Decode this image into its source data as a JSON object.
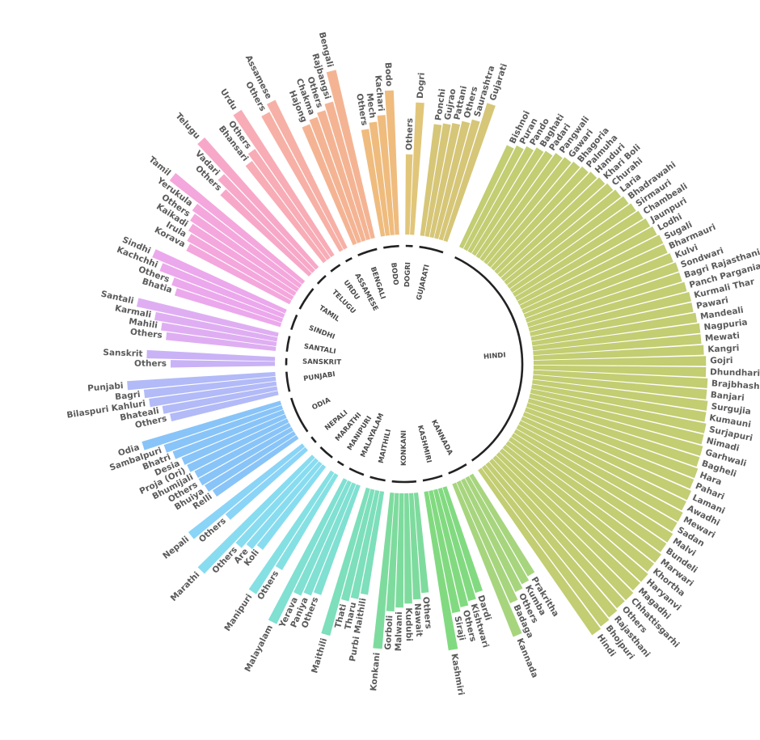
{
  "chart_data": {
    "type": "bar",
    "polar": true,
    "title": "",
    "groups": [
      {
        "name": "HINDI",
        "color": "#c3cd72",
        "bars": [
          {
            "label": "Bishnoi",
            "value": 0.56
          },
          {
            "label": "Puran",
            "value": 0.58
          },
          {
            "label": "Pando",
            "value": 0.6
          },
          {
            "label": "Baghati",
            "value": 0.62
          },
          {
            "label": "Padari",
            "value": 0.63
          },
          {
            "label": "Pangwali",
            "value": 0.65
          },
          {
            "label": "Gawari",
            "value": 0.66
          },
          {
            "label": "Bhagoria",
            "value": 0.67
          },
          {
            "label": "Palmuha",
            "value": 0.68
          },
          {
            "label": "Handuri",
            "value": 0.69
          },
          {
            "label": "Khari Boli",
            "value": 0.7
          },
          {
            "label": "Churahi",
            "value": 0.71
          },
          {
            "label": "Laria",
            "value": 0.72
          },
          {
            "label": "Bhadrawahi",
            "value": 0.73
          },
          {
            "label": "Sirmauri",
            "value": 0.74
          },
          {
            "label": "Chambeali",
            "value": 0.75
          },
          {
            "label": "Jaunpuri",
            "value": 0.76
          },
          {
            "label": "Lodhi",
            "value": 0.77
          },
          {
            "label": "Sugali",
            "value": 0.78
          },
          {
            "label": "Bharmauri",
            "value": 0.78
          },
          {
            "label": "Kulvi",
            "value": 0.79
          },
          {
            "label": "Sondwari",
            "value": 0.8
          },
          {
            "label": "Bagri Rajasthani",
            "value": 0.8
          },
          {
            "label": "Panch Pargania",
            "value": 0.81
          },
          {
            "label": "Kurmali Thar",
            "value": 0.82
          },
          {
            "label": "Pawari",
            "value": 0.82
          },
          {
            "label": "Mandeali",
            "value": 0.83
          },
          {
            "label": "Nagpuria",
            "value": 0.84
          },
          {
            "label": "Mewati",
            "value": 0.84
          },
          {
            "label": "Kangri",
            "value": 0.85
          },
          {
            "label": "Gojri",
            "value": 0.86
          },
          {
            "label": "Dhundhari",
            "value": 0.86
          },
          {
            "label": "Brajbhasha",
            "value": 0.87
          },
          {
            "label": "Banjari",
            "value": 0.87
          },
          {
            "label": "Surgujia",
            "value": 0.88
          },
          {
            "label": "Kumauni",
            "value": 0.88
          },
          {
            "label": "Surjapuri",
            "value": 0.89
          },
          {
            "label": "Nimadi",
            "value": 0.89
          },
          {
            "label": "Garhwali",
            "value": 0.9
          },
          {
            "label": "Bagheli",
            "value": 0.9
          },
          {
            "label": "Hara",
            "value": 0.91
          },
          {
            "label": "Pahari",
            "value": 0.91
          },
          {
            "label": "Lamani",
            "value": 0.92
          },
          {
            "label": "Awadhi",
            "value": 0.92
          },
          {
            "label": "Mewari",
            "value": 0.93
          },
          {
            "label": "Sadan",
            "value": 0.93
          },
          {
            "label": "Malvi",
            "value": 0.94
          },
          {
            "label": "Bundeli",
            "value": 0.94
          },
          {
            "label": "Marwari",
            "value": 0.95
          },
          {
            "label": "Khortha",
            "value": 0.95
          },
          {
            "label": "Haryanvi",
            "value": 0.96
          },
          {
            "label": "Magadhi",
            "value": 0.96
          },
          {
            "label": "Chhattisgarhi",
            "value": 0.97
          },
          {
            "label": "Others",
            "value": 0.97
          },
          {
            "label": "Rajasthani",
            "value": 0.98
          },
          {
            "label": "Bhojpuri",
            "value": 0.99
          },
          {
            "label": "Hindi",
            "value": 1.0
          }
        ]
      },
      {
        "name": "KANNADA",
        "color": "#a7d57e",
        "bars": [
          {
            "label": "Prakritha",
            "value": 0.58
          },
          {
            "label": "Kumba",
            "value": 0.6
          },
          {
            "label": "Others",
            "value": 0.62
          },
          {
            "label": "Badaga",
            "value": 0.66
          },
          {
            "label": "Kannada",
            "value": 0.82
          }
        ]
      },
      {
        "name": "KASHMIRI",
        "color": "#82da80",
        "bars": [
          {
            "label": "Dardi",
            "value": 0.55
          },
          {
            "label": "Kishtwari",
            "value": 0.58
          },
          {
            "label": "Others",
            "value": 0.6
          },
          {
            "label": "Siraji",
            "value": 0.62
          },
          {
            "label": "Kashmiri",
            "value": 0.8
          }
        ]
      },
      {
        "name": "KONKANI",
        "color": "#7edb9e",
        "bars": [
          {
            "label": "Others",
            "value": 0.5
          },
          {
            "label": "Nawait",
            "value": 0.53
          },
          {
            "label": "Kudubi",
            "value": 0.55
          },
          {
            "label": "Malwani",
            "value": 0.57
          },
          {
            "label": "Gorboli",
            "value": 0.59
          },
          {
            "label": "Konkani",
            "value": 0.78
          }
        ]
      },
      {
        "name": "MAITHILI",
        "color": "#7ddfbb",
        "bars": [
          {
            "label": "Purbi Maithili",
            "value": 0.52
          },
          {
            "label": "Tharu",
            "value": 0.55
          },
          {
            "label": "Thati",
            "value": 0.57
          },
          {
            "label": "Maithili",
            "value": 0.76
          }
        ]
      },
      {
        "name": "MALAYALAM",
        "color": "#80e0d2",
        "bars": [
          {
            "label": "Others",
            "value": 0.58
          },
          {
            "label": "Paniya",
            "value": 0.6
          },
          {
            "label": "Yerava",
            "value": 0.62
          },
          {
            "label": "Malayalam",
            "value": 0.8
          }
        ]
      },
      {
        "name": "MANIPURI",
        "color": "#85e0e3",
        "bars": [
          {
            "label": "Others",
            "value": 0.55
          },
          {
            "label": "Manipuri",
            "value": 0.72
          }
        ]
      },
      {
        "name": "MARATHI",
        "color": "#88dcf0",
        "bars": [
          {
            "label": "Koli",
            "value": 0.52
          },
          {
            "label": "Are",
            "value": 0.55
          },
          {
            "label": "Others",
            "value": 0.58
          },
          {
            "label": "Marathi",
            "value": 0.8
          }
        ]
      },
      {
        "name": "NEPALI",
        "color": "#8ad4f7",
        "bars": [
          {
            "label": "Others",
            "value": 0.52
          },
          {
            "label": "Nepali",
            "value": 0.72
          }
        ]
      },
      {
        "name": "ODIA",
        "color": "#88c4f8",
        "bars": [
          {
            "label": "Relli",
            "value": 0.5
          },
          {
            "label": "Bhuiya",
            "value": 0.52
          },
          {
            "label": "Others",
            "value": 0.53
          },
          {
            "label": "Bhumijali",
            "value": 0.53
          },
          {
            "label": "Proja (Ori)",
            "value": 0.55
          },
          {
            "label": "Desia",
            "value": 0.56
          },
          {
            "label": "Bhatri",
            "value": 0.59
          },
          {
            "label": "Sambalpuri",
            "value": 0.62
          },
          {
            "label": "Odia",
            "value": 0.72
          }
        ]
      },
      {
        "name": "PUNJABI",
        "color": "#b2baf7",
        "bars": [
          {
            "label": "Others",
            "value": 0.55
          },
          {
            "label": "Bhateali",
            "value": 0.58
          },
          {
            "label": "Bilaspuri Kahluri",
            "value": 0.64
          },
          {
            "label": "Bagri",
            "value": 0.66
          },
          {
            "label": "Punjabi",
            "value": 0.74
          }
        ]
      },
      {
        "name": "SANSKRIT",
        "color": "#c9b2f6",
        "bars": [
          {
            "label": "Others",
            "value": 0.52
          },
          {
            "label": "Sanskrit",
            "value": 0.64
          }
        ]
      },
      {
        "name": "SANTALI",
        "color": "#dfaef2",
        "bars": [
          {
            "label": "Others",
            "value": 0.55
          },
          {
            "label": "Mahili",
            "value": 0.58
          },
          {
            "label": "Karmali",
            "value": 0.62
          },
          {
            "label": "Santali",
            "value": 0.72
          }
        ]
      },
      {
        "name": "SINDHI",
        "color": "#eca8ec",
        "bars": [
          {
            "label": "Bhatia",
            "value": 0.55
          },
          {
            "label": "Others",
            "value": 0.58
          },
          {
            "label": "Kachchhi",
            "value": 0.66
          },
          {
            "label": "Sindhi",
            "value": 0.72
          }
        ]
      },
      {
        "name": "TAMIL",
        "color": "#f4a7dc",
        "bars": [
          {
            "label": "Korava",
            "value": 0.58
          },
          {
            "label": "Irula",
            "value": 0.6
          },
          {
            "label": "Kaikadi",
            "value": 0.62
          },
          {
            "label": "Others",
            "value": 0.64
          },
          {
            "label": "Yerukula",
            "value": 0.66
          },
          {
            "label": "Tamil",
            "value": 0.84
          }
        ]
      },
      {
        "name": "TELUGU",
        "color": "#f7a8c9",
        "bars": [
          {
            "label": "Others",
            "value": 0.6
          },
          {
            "label": "Vadari",
            "value": 0.66
          },
          {
            "label": "Telugu",
            "value": 0.86
          }
        ]
      },
      {
        "name": "URDU",
        "color": "#f8acb6",
        "bars": [
          {
            "label": "Bhansari",
            "value": 0.62
          },
          {
            "label": "Others",
            "value": 0.66
          },
          {
            "label": "Urdu",
            "value": 0.86
          }
        ]
      },
      {
        "name": "ASSAMESE",
        "color": "#f7b0a6",
        "bars": [
          {
            "label": "Others",
            "value": 0.78
          },
          {
            "label": "Assamese",
            "value": 0.82
          }
        ]
      },
      {
        "name": "BENGALI",
        "color": "#f4b493",
        "bars": [
          {
            "label": "Hajong",
            "value": 0.64
          },
          {
            "label": "Chakma",
            "value": 0.66
          },
          {
            "label": "Others",
            "value": 0.68
          },
          {
            "label": "Rajbangsi",
            "value": 0.71
          },
          {
            "label": "Bengali",
            "value": 0.86
          }
        ]
      },
      {
        "name": "BODO",
        "color": "#efbc7e",
        "bars": [
          {
            "label": "Others",
            "value": 0.54
          },
          {
            "label": "Mech",
            "value": 0.57
          },
          {
            "label": "Kachari",
            "value": 0.6
          },
          {
            "label": "Bodo",
            "value": 0.72
          }
        ]
      },
      {
        "name": "DOGRI",
        "color": "#e1c67a",
        "bars": [
          {
            "label": "Others",
            "value": 0.4
          },
          {
            "label": "Dogri",
            "value": 0.66
          }
        ]
      },
      {
        "name": "GUJARATI",
        "color": "#d6c677",
        "bars": [
          {
            "label": "Ponchi",
            "value": 0.56
          },
          {
            "label": "Gujrao",
            "value": 0.57
          },
          {
            "label": "Pattani",
            "value": 0.58
          },
          {
            "label": "Others",
            "value": 0.6
          },
          {
            "label": "Saurashtra",
            "value": 0.62
          },
          {
            "label": "Gujarati",
            "value": 0.72
          }
        ]
      }
    ]
  }
}
